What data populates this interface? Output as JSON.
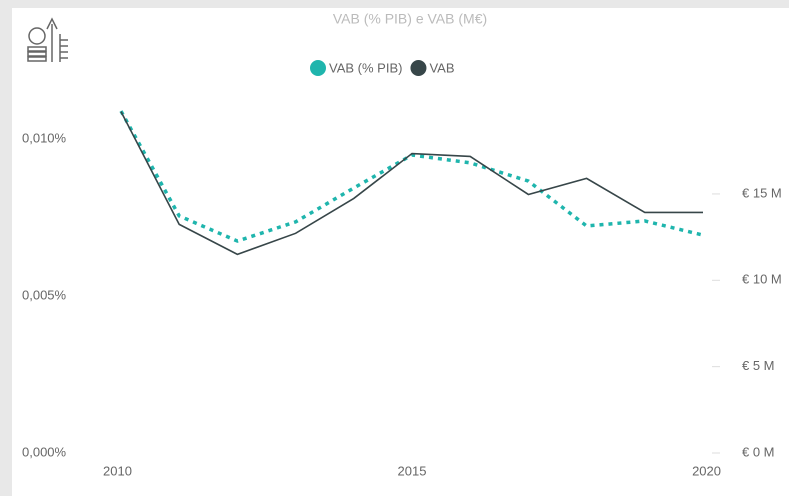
{
  "chart_data": {
    "type": "line",
    "title": "VAB (% PIB) e VAB (M€)",
    "x": [
      2010,
      2011,
      2012,
      2013,
      2014,
      2015,
      2016,
      2017,
      2018,
      2019,
      2020
    ],
    "xlim": [
      2010,
      2020
    ],
    "xticks": [
      2010,
      2015,
      2020
    ],
    "ylim": [
      0,
      0.011
    ],
    "yticks": [
      {
        "value": 0,
        "label": "0,000%"
      },
      {
        "value": 0.005,
        "label": "0,005%"
      },
      {
        "value": 0.01,
        "label": "0,010%"
      }
    ],
    "y2lim": [
      0,
      20
    ],
    "y2ticks": [
      {
        "value": 0,
        "label": "€ 0 M"
      },
      {
        "value": 5,
        "label": "€ 5 M"
      },
      {
        "value": 10,
        "label": "€ 10 M"
      },
      {
        "value": 15,
        "label": "€ 15 M"
      }
    ],
    "series": [
      {
        "name": "VAB (% PIB)",
        "color": "#1fb5ad",
        "dashed": true,
        "values": [
          0.01089,
          0.00755,
          0.00675,
          0.00736,
          0.00844,
          0.00949,
          0.00924,
          0.00866,
          0.00723,
          0.00739,
          0.00694
        ]
      },
      {
        "name": "VAB",
        "color": "#374649",
        "axis": "y2",
        "values": [
          19.77,
          13.24,
          11.5,
          12.72,
          14.74,
          17.34,
          17.17,
          14.97,
          15.9,
          13.93,
          13.93
        ]
      }
    ]
  }
}
